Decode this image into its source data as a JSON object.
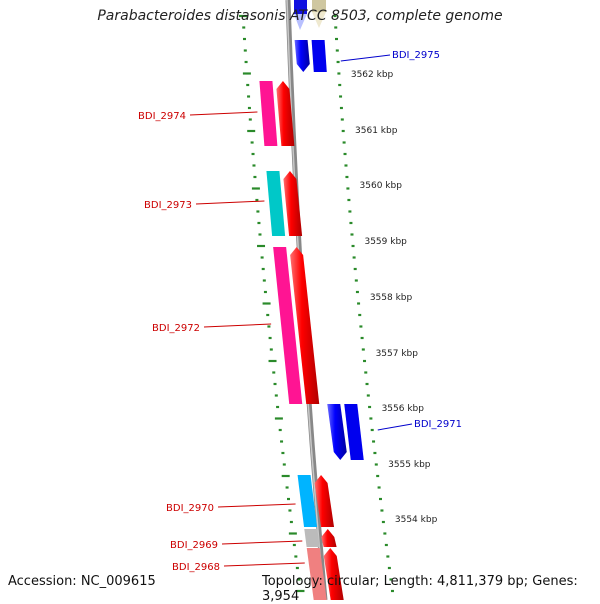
{
  "title": "Parabacteroides distasonis ATCC 8503, complete genome",
  "footer": {
    "accession": "Accession: NC_009615",
    "topology": "Topology: circular; Length: 4,811,379 bp; Genes: 3,954"
  },
  "colors": {
    "backbone": "#8a8a8a",
    "tick": "#2a8a2a",
    "reverse_gene_label": "#cc0000",
    "forward_gene_label": "#0000cc",
    "cds_reverse": "#ff0000",
    "cds_forward": "#0000ff"
  },
  "scale_labels": [
    "3562 kbp",
    "3561 kbp",
    "3560 kbp",
    "3559 kbp",
    "3558 kbp",
    "3557 kbp",
    "3556 kbp",
    "3555 kbp",
    "3554 kbp"
  ],
  "genes": [
    {
      "name": "BDI_2975",
      "strand": "forward",
      "cog_color": "#0000ee",
      "cds_color": "#0000ff"
    },
    {
      "name": "BDI_2974",
      "strand": "reverse",
      "cog_color": "#ff1493",
      "cds_color": "#ff0000"
    },
    {
      "name": "BDI_2973",
      "strand": "reverse",
      "cog_color": "#00c8c8",
      "cds_color": "#ff0000"
    },
    {
      "name": "BDI_2972",
      "strand": "reverse",
      "cog_color": "#ff1493",
      "cds_color": "#ff0000"
    },
    {
      "name": "BDI_2971",
      "strand": "forward",
      "cog_color": "#0000ee",
      "cds_color": "#0000ff"
    },
    {
      "name": "BDI_2970",
      "strand": "reverse",
      "cog_color": "#00b4ff",
      "cds_color": "#ff0000"
    },
    {
      "name": "BDI_2969",
      "strand": "reverse",
      "cog_color": "#bbbbbb",
      "cds_color": "#ff0000"
    },
    {
      "name": "BDI_2968",
      "strand": "reverse",
      "cog_color": "#f08080",
      "cds_color": "#ff0000"
    }
  ]
}
